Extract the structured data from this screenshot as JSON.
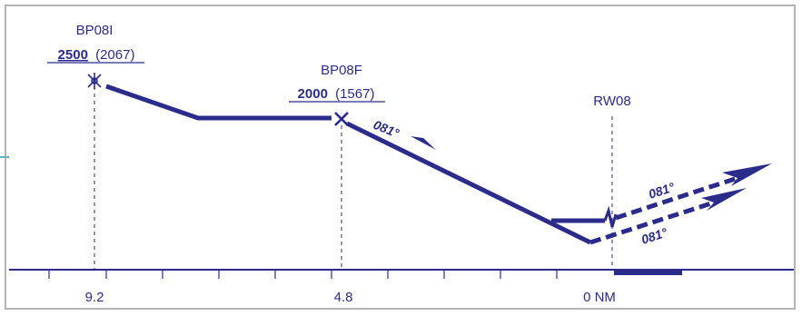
{
  "colors": {
    "line": "#2b2b8c",
    "frame": "#b4b4b4",
    "accent": "#64b4be"
  },
  "fixes": {
    "if": {
      "name": "BP08I",
      "altitude": "2500",
      "msa": "(2067)",
      "distance": "9.2",
      "symbol": "flyover-fix-icon"
    },
    "ff": {
      "name": "BP08F",
      "altitude": "2000",
      "msa": "(1567)",
      "distance": "4.8",
      "symbol": "final-fix-icon"
    },
    "rw": {
      "name": "RW08",
      "distance": "0 NM"
    }
  },
  "tracks": {
    "final": "081°",
    "missed_upper": "081°",
    "missed_lower": "081°"
  }
}
